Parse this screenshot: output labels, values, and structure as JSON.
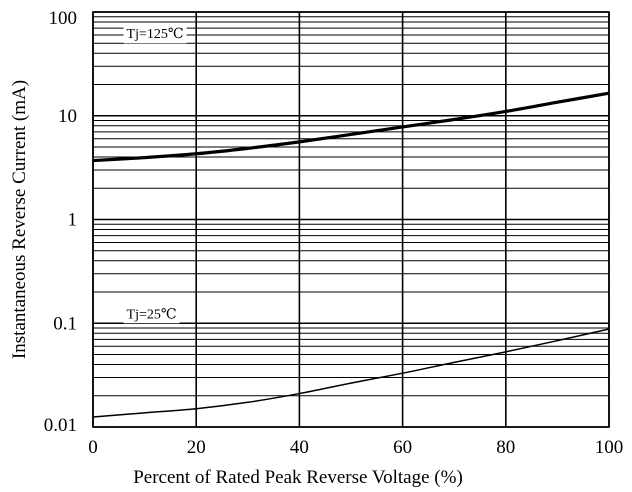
{
  "chart_data": {
    "type": "line",
    "xlabel": "Percent of Rated Peak Reverse Voltage (%)",
    "ylabel": "Instantaneous Reverse Current (mA)",
    "x_ticks": [
      "0",
      "20",
      "40",
      "60",
      "80",
      "100"
    ],
    "y_ticks": [
      "0.01",
      "0.1",
      "1",
      "10",
      "100"
    ],
    "xlim": [
      0,
      100
    ],
    "ylim": [
      0.01,
      100
    ],
    "y_scale": "log",
    "grid": true,
    "series": [
      {
        "name": "Tj=125℃",
        "stroke": "#000000",
        "weight": "bold",
        "x": [
          0,
          10,
          20,
          30,
          40,
          50,
          60,
          70,
          80,
          90,
          100
        ],
        "y": [
          3.7,
          3.95,
          4.3,
          4.85,
          5.6,
          6.6,
          7.8,
          9.2,
          11,
          13.5,
          16.5
        ]
      },
      {
        "name": "Tj=25℃",
        "stroke": "#000000",
        "weight": "thin",
        "x": [
          0,
          10,
          20,
          30,
          40,
          50,
          60,
          70,
          80,
          90,
          100
        ],
        "y": [
          0.0125,
          0.0137,
          0.015,
          0.0173,
          0.021,
          0.0265,
          0.033,
          0.042,
          0.053,
          0.068,
          0.088
        ]
      }
    ]
  }
}
